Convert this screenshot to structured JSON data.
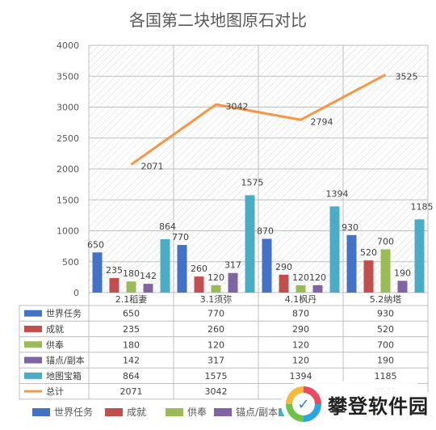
{
  "chart_data": {
    "type": "bar",
    "title": "各国第二块地图原石对比",
    "categories": [
      "2.1稻妻",
      "3.1须弥",
      "4.1枫丹",
      "5.2纳塔"
    ],
    "ylim": [
      0,
      4000
    ],
    "yticks": [
      0,
      500,
      1000,
      1500,
      2000,
      2500,
      3000,
      3500,
      4000
    ],
    "grid": true,
    "legend_placement": "bottom",
    "series": [
      {
        "name": "世界任务",
        "type": "bar",
        "color": "#4472c4",
        "values": [
          650,
          770,
          870,
          930
        ]
      },
      {
        "name": "成就",
        "type": "bar",
        "color": "#c0504d",
        "values": [
          235,
          260,
          290,
          520
        ]
      },
      {
        "name": "供奉",
        "type": "bar",
        "color": "#9bbb59",
        "values": [
          180,
          120,
          120,
          700
        ]
      },
      {
        "name": "锚点/副本",
        "type": "bar",
        "color": "#8064a2",
        "values": [
          142,
          317,
          120,
          190
        ]
      },
      {
        "name": "地图宝箱",
        "type": "bar",
        "color": "#4bacc6",
        "values": [
          864,
          1575,
          1394,
          1185
        ]
      },
      {
        "name": "总计",
        "type": "line",
        "color": "#f79646",
        "values": [
          2071,
          3042,
          2794,
          3525
        ]
      }
    ]
  },
  "watermark": {
    "icon": "check-badge-icon",
    "glyph": "✓",
    "text": "攀登软件园"
  }
}
